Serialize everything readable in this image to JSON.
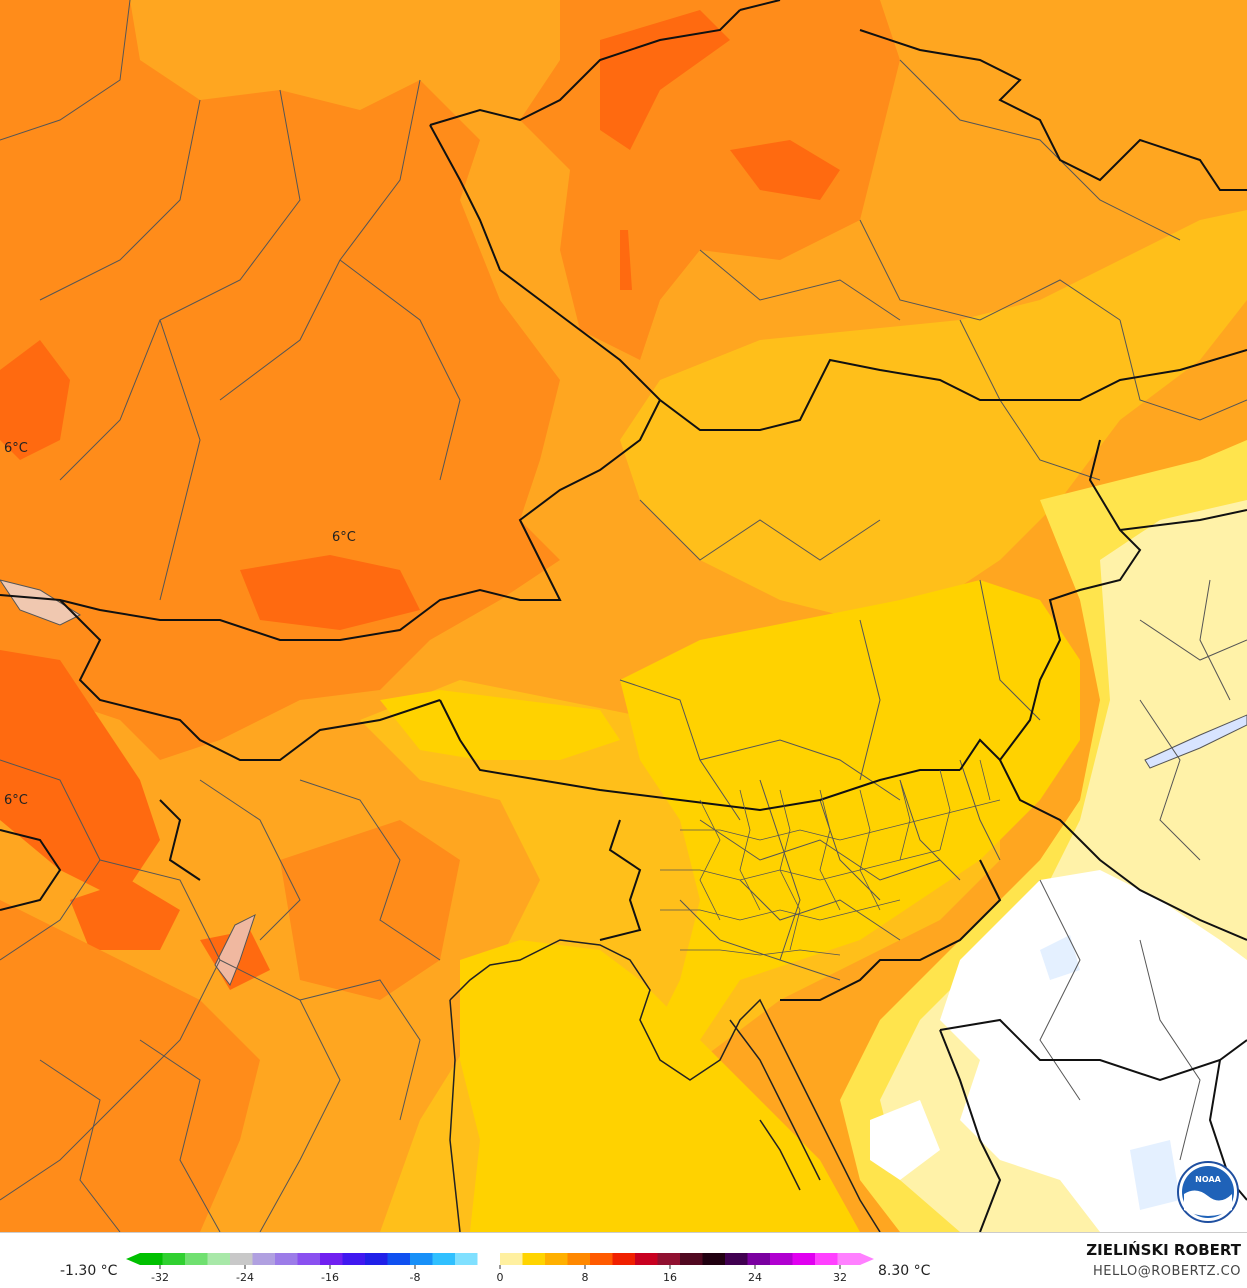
{
  "map": {
    "iso_labels": [
      {
        "text": "6°C"
      },
      {
        "text": "6°C"
      },
      {
        "text": "6°C"
      }
    ],
    "colors": {
      "deep_orange": "#ff6a10",
      "orange": "#ff8c1a",
      "light_orange": "#ffa620",
      "amber": "#ffbf1a",
      "gold": "#ffd200",
      "yellow": "#ffe44d",
      "pale_yellow": "#fff2a8",
      "white": "#ffffff",
      "border_major": "#111111",
      "border_minor": "#555555"
    }
  },
  "legend": {
    "min_label": "-1.30 °C",
    "max_label": "8.30 °C",
    "ticks": [
      "-32",
      "-24",
      "-16",
      "-8",
      "0",
      "8",
      "16",
      "24",
      "32"
    ],
    "colors": [
      "#00c000",
      "#30d030",
      "#70e070",
      "#a8e8a8",
      "#c8c8c8",
      "#b0a0e0",
      "#9c7ce8",
      "#8a50f0",
      "#7020f0",
      "#4018f0",
      "#2020e8",
      "#1050f0",
      "#1890f8",
      "#30c0ff",
      "#80e0ff",
      "#ffffff",
      "#fff0a0",
      "#ffd400",
      "#ffb000",
      "#ff8800",
      "#ff5a00",
      "#f02000",
      "#c80020",
      "#901030",
      "#500820",
      "#200010",
      "#400050",
      "#7a00a0",
      "#b000d0",
      "#e000f0",
      "#ff40ff",
      "#ff80ff"
    ]
  },
  "credits": {
    "name": "ZIELIŃSKI ROBERT",
    "email": "HELLO@ROBERTZ.CO",
    "logo_text": "NOAA"
  }
}
